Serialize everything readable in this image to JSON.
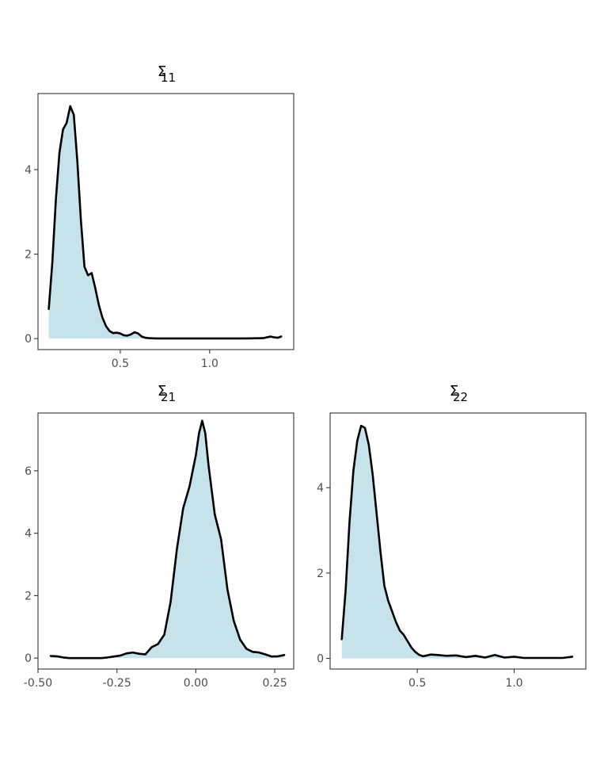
{
  "colors": {
    "fill": "#c6e3ec",
    "line": "#000000",
    "frame": "#333333",
    "tick_text": "#4d4d4d"
  },
  "chart_data": [
    {
      "type": "area",
      "title_symbol": "Σ",
      "title_subscript": "11",
      "xlim": [
        0.04,
        1.47
      ],
      "ylim": [
        -0.26,
        5.8
      ],
      "xticks": [
        0.5,
        1.0
      ],
      "xtick_labels": [
        "0.5",
        "1.0"
      ],
      "yticks": [
        0,
        2,
        4
      ],
      "ytick_labels": [
        "0",
        "2",
        "4"
      ],
      "x": [
        0.1,
        0.12,
        0.14,
        0.16,
        0.18,
        0.2,
        0.22,
        0.24,
        0.26,
        0.28,
        0.3,
        0.32,
        0.34,
        0.36,
        0.38,
        0.4,
        0.42,
        0.44,
        0.46,
        0.48,
        0.5,
        0.52,
        0.54,
        0.56,
        0.58,
        0.6,
        0.62,
        0.64,
        0.66,
        0.7,
        0.8,
        0.9,
        1.0,
        1.1,
        1.2,
        1.3,
        1.32,
        1.34,
        1.36,
        1.38,
        1.4
      ],
      "y": [
        0.7,
        1.8,
        3.3,
        4.4,
        4.95,
        5.1,
        5.5,
        5.3,
        4.2,
        2.8,
        1.7,
        1.5,
        1.55,
        1.2,
        0.8,
        0.5,
        0.3,
        0.18,
        0.13,
        0.14,
        0.12,
        0.08,
        0.07,
        0.1,
        0.15,
        0.12,
        0.05,
        0.02,
        0.01,
        0.005,
        0.005,
        0.005,
        0.005,
        0.005,
        0.005,
        0.01,
        0.03,
        0.05,
        0.03,
        0.02,
        0.05
      ]
    },
    {
      "type": "area",
      "title_symbol": "Σ",
      "title_subscript": "21",
      "xlim": [
        -0.5,
        0.31
      ],
      "ylim": [
        -0.35,
        7.85
      ],
      "xticks": [
        -0.5,
        -0.25,
        0.0,
        0.25
      ],
      "xtick_labels": [
        "-0.50",
        "-0.25",
        "0.00",
        "0.25"
      ],
      "yticks": [
        0,
        2,
        4,
        6
      ],
      "ytick_labels": [
        "0",
        "2",
        "4",
        "6"
      ],
      "x": [
        -0.46,
        -0.44,
        -0.42,
        -0.4,
        -0.35,
        -0.3,
        -0.28,
        -0.26,
        -0.24,
        -0.22,
        -0.2,
        -0.18,
        -0.16,
        -0.14,
        -0.12,
        -0.1,
        -0.08,
        -0.06,
        -0.04,
        -0.02,
        0.0,
        0.01,
        0.02,
        0.03,
        0.04,
        0.06,
        0.08,
        0.1,
        0.12,
        0.14,
        0.16,
        0.18,
        0.2,
        0.22,
        0.24,
        0.26,
        0.28
      ],
      "y": [
        0.07,
        0.06,
        0.02,
        0.0,
        0.0,
        0.0,
        0.02,
        0.05,
        0.08,
        0.15,
        0.18,
        0.14,
        0.12,
        0.35,
        0.45,
        0.75,
        1.8,
        3.5,
        4.8,
        5.5,
        6.5,
        7.2,
        7.6,
        7.2,
        6.2,
        4.6,
        3.8,
        2.2,
        1.2,
        0.6,
        0.3,
        0.2,
        0.18,
        0.12,
        0.05,
        0.06,
        0.1
      ]
    },
    {
      "type": "area",
      "title_symbol": "Σ",
      "title_subscript": "22",
      "xlim": [
        0.05,
        1.37
      ],
      "ylim": [
        -0.25,
        5.75
      ],
      "xticks": [
        0.5,
        1.0
      ],
      "xtick_labels": [
        "0.5",
        "1.0"
      ],
      "yticks": [
        0,
        2,
        4
      ],
      "ytick_labels": [
        "0",
        "2",
        "4"
      ],
      "x": [
        0.11,
        0.13,
        0.15,
        0.17,
        0.19,
        0.21,
        0.23,
        0.25,
        0.27,
        0.29,
        0.31,
        0.33,
        0.35,
        0.37,
        0.39,
        0.41,
        0.43,
        0.45,
        0.47,
        0.49,
        0.51,
        0.53,
        0.55,
        0.57,
        0.6,
        0.65,
        0.7,
        0.75,
        0.8,
        0.85,
        0.9,
        0.95,
        1.0,
        1.05,
        1.1,
        1.15,
        1.2,
        1.25,
        1.3
      ],
      "y": [
        0.45,
        1.6,
        3.2,
        4.4,
        5.1,
        5.45,
        5.4,
        5.0,
        4.3,
        3.4,
        2.5,
        1.7,
        1.35,
        1.1,
        0.85,
        0.65,
        0.55,
        0.4,
        0.25,
        0.15,
        0.08,
        0.05,
        0.07,
        0.09,
        0.08,
        0.06,
        0.07,
        0.03,
        0.06,
        0.02,
        0.08,
        0.02,
        0.04,
        0.01,
        0.01,
        0.01,
        0.01,
        0.01,
        0.04
      ]
    }
  ]
}
